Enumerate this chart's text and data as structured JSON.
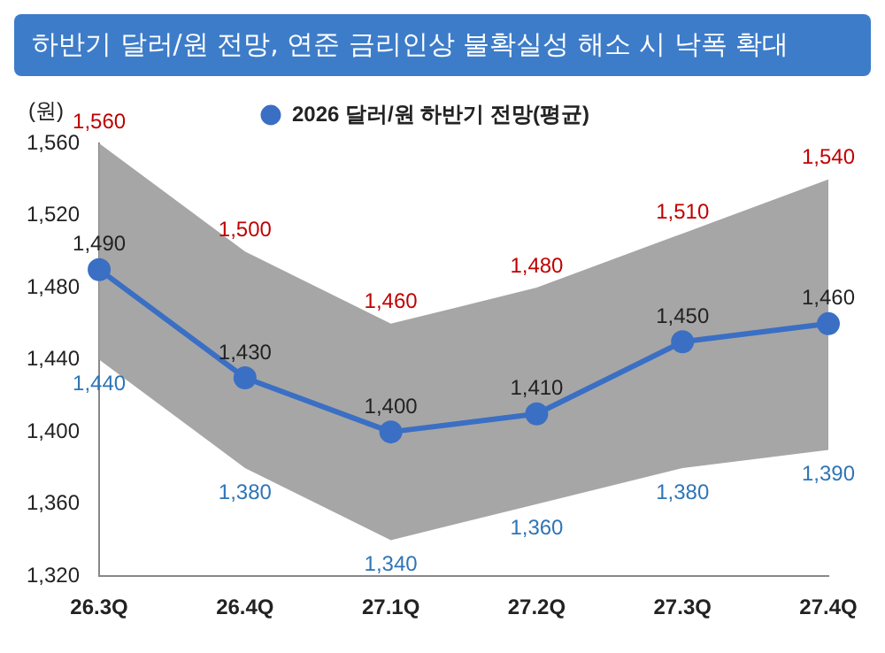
{
  "chart_data": {
    "type": "line",
    "title": "하반기 달러/원 전망, 연준 금리인상 불확실성 해소 시 낙폭 확대",
    "ylabel": "(원)",
    "categories": [
      "26.3Q",
      "26.4Q",
      "27.1Q",
      "27.2Q",
      "27.3Q",
      "27.4Q"
    ],
    "series": [
      {
        "name": "2026 달러/원 하반기 전망(평균)",
        "color": "#3a6fc4",
        "values": [
          1490,
          1430,
          1400,
          1410,
          1450,
          1460
        ],
        "value_labels": [
          "1,490",
          "1,430",
          "1,400",
          "1,410",
          "1,450",
          "1,460"
        ],
        "upper": [
          1560,
          1500,
          1460,
          1480,
          1510,
          1540
        ],
        "lower": [
          1440,
          1380,
          1340,
          1360,
          1380,
          1390
        ]
      }
    ],
    "annotations": [
      {
        "text": "1,560",
        "x": "26.3Q",
        "y": 1560
      },
      {
        "text": "1,500",
        "x": "26.4Q",
        "y": 1500
      },
      {
        "text": "1,460",
        "x": "27.1Q",
        "y": 1460
      },
      {
        "text": "1,480",
        "x": "27.2Q",
        "y": 1480
      },
      {
        "text": "1,510",
        "x": "27.3Q",
        "y": 1510
      },
      {
        "text": "1,540",
        "x": "27.4Q",
        "y": 1540
      },
      {
        "text": "1,440",
        "x": "26.3Q",
        "y": 1440
      },
      {
        "text": "1,380",
        "x": "26.4Q",
        "y": 1380
      },
      {
        "text": "1,340",
        "x": "27.1Q",
        "y": 1340
      },
      {
        "text": "1,360",
        "x": "27.2Q",
        "y": 1360
      },
      {
        "text": "1,380",
        "x": "27.3Q",
        "y": 1380
      },
      {
        "text": "1,390",
        "x": "27.4Q",
        "y": 1390
      }
    ],
    "ylim": [
      1320,
      1560
    ],
    "yticks": [
      {
        "value": 1320,
        "label": "1,320"
      },
      {
        "value": 1360,
        "label": "1,360"
      },
      {
        "value": 1400,
        "label": "1,400"
      },
      {
        "value": 1440,
        "label": "1,440"
      },
      {
        "value": 1480,
        "label": "1,480"
      },
      {
        "value": 1520,
        "label": "1,520"
      },
      {
        "value": 1560,
        "label": "1,560"
      }
    ],
    "grid": false,
    "legend": "top",
    "marker": "circle",
    "line_style": "solid"
  }
}
